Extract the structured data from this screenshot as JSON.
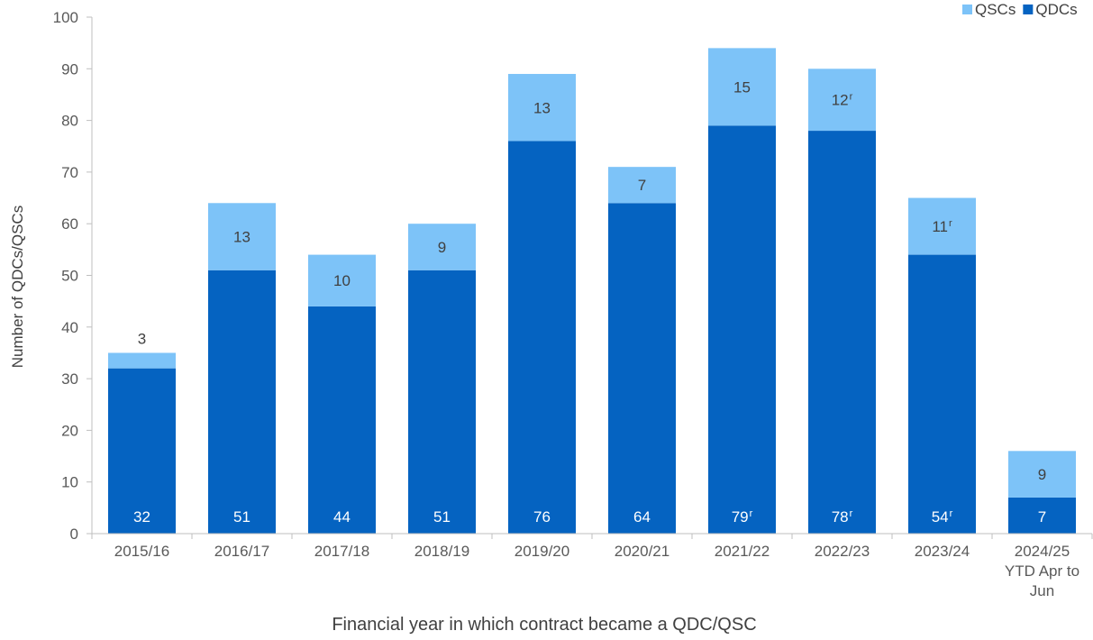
{
  "chart_data": {
    "type": "bar",
    "stacked": true,
    "categories": [
      [
        "2015/16"
      ],
      [
        "2016/17"
      ],
      [
        "2017/18"
      ],
      [
        "2018/19"
      ],
      [
        "2019/20"
      ],
      [
        "2020/21"
      ],
      [
        "2021/22"
      ],
      [
        "2022/23"
      ],
      [
        "2023/24"
      ],
      [
        "2024/25",
        "YTD Apr to",
        "Jun"
      ]
    ],
    "series": [
      {
        "name": "QDCs",
        "color": "#0563C1",
        "values": [
          32,
          51,
          44,
          51,
          76,
          64,
          79,
          78,
          54,
          7
        ],
        "labels": [
          "32",
          "51",
          "44",
          "51",
          "76",
          "64",
          "79",
          "78",
          "54",
          "7"
        ],
        "revised": [
          false,
          false,
          false,
          false,
          false,
          false,
          true,
          true,
          true,
          false
        ],
        "label_color": "#ffffff"
      },
      {
        "name": "QSCs",
        "color": "#7DC3F8",
        "values": [
          3,
          13,
          10,
          9,
          13,
          7,
          15,
          12,
          11,
          9
        ],
        "labels": [
          "3",
          "13",
          "10",
          "9",
          "13",
          "7",
          "15",
          "12",
          "11",
          "9"
        ],
        "revised": [
          false,
          false,
          false,
          false,
          false,
          false,
          false,
          true,
          true,
          false
        ],
        "label_color": "#404040"
      }
    ],
    "revised_marker": "r",
    "title": "",
    "xlabel": "Financial year in which contract became a QDC/QSC",
    "ylabel": "Number of QDCs/QSCs",
    "ylim": [
      0,
      100
    ],
    "yticks": [
      "0",
      "10",
      "20",
      "30",
      "40",
      "50",
      "60",
      "70",
      "80",
      "90",
      "100"
    ],
    "grid": false,
    "legend": {
      "position": "top-right",
      "order": [
        "QSCs",
        "QDCs"
      ]
    }
  }
}
